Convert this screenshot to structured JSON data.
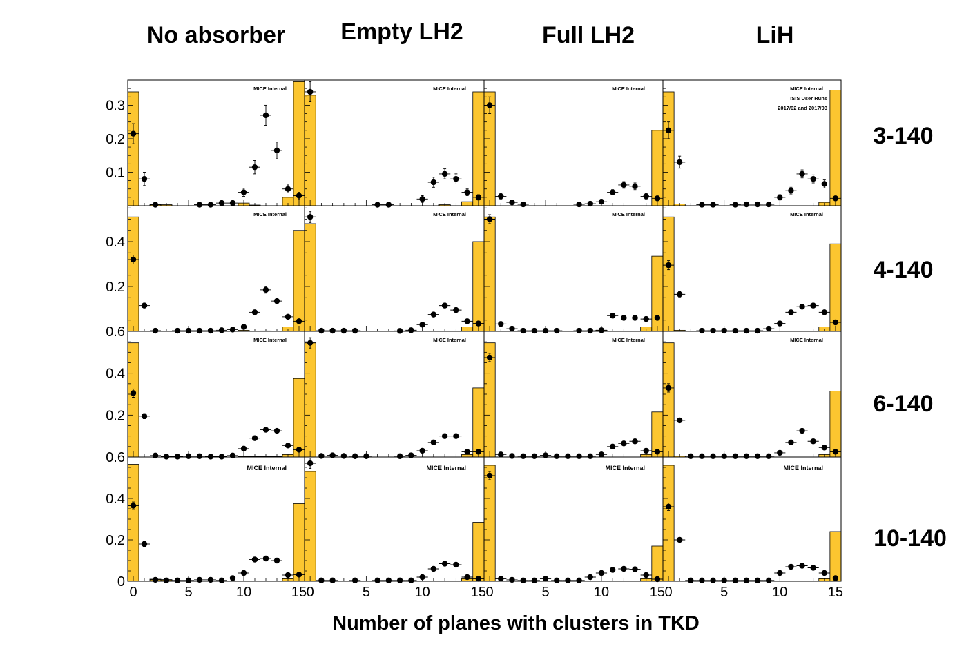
{
  "figure": {
    "xlabel": "Number of planes with clusters in TKD",
    "columns": [
      "No absorber",
      "Empty LH2",
      "Full LH2",
      "LiH"
    ],
    "rows": [
      "3-140",
      "4-140",
      "6-140",
      "10-140"
    ],
    "x_ticks": [
      "0",
      "5",
      "10",
      "15"
    ],
    "watermark": "MICE Internal",
    "extra_labels": [
      "ISIS User Runs",
      "2017/02 and 2017/03"
    ],
    "colors": {
      "histogram_fill": "#fcc630",
      "histogram_edge": "#000000",
      "marker": "#000000"
    }
  },
  "chart_data": {
    "type": "bar",
    "description_series": [
      "Simulation (filled histogram)",
      "Data (points with error bars)"
    ],
    "x": [
      0,
      1,
      2,
      3,
      4,
      5,
      6,
      7,
      8,
      9,
      10,
      11,
      12,
      13,
      14,
      15
    ],
    "xlim": [
      -0.5,
      15.5
    ],
    "panels": [
      {
        "row": "3-140",
        "col": "No absorber",
        "ylim": [
          0,
          0.375
        ],
        "y_ticks": [
          0.1,
          0.2,
          0.3
        ],
        "hist": [
          0.34,
          0,
          0.003,
          0.003,
          0,
          0,
          0,
          0,
          0,
          0,
          0.008,
          0.002,
          0,
          0,
          0.025,
          0.37
        ],
        "points": [
          0.215,
          0.08,
          0.003,
          0,
          0,
          0,
          0.003,
          0.003,
          0.008,
          0.008,
          0.04,
          0.115,
          0.27,
          0.165,
          0.05,
          0.03
        ],
        "errors": [
          0.03,
          0.02,
          0.003,
          0,
          0,
          0,
          0.003,
          0.003,
          0.004,
          0.004,
          0.012,
          0.02,
          0.03,
          0.025,
          0.012,
          0.01
        ]
      },
      {
        "row": "3-140",
        "col": "Empty LH2",
        "ylim": [
          0,
          0.375
        ],
        "hist": [
          0.33,
          0,
          0,
          0,
          0,
          0,
          0,
          0,
          0,
          0,
          0,
          0,
          0.003,
          0,
          0.012,
          0.34
        ],
        "points": [
          0.34,
          0,
          0,
          0,
          0,
          0,
          0.003,
          0.003,
          0,
          0,
          0.02,
          0.07,
          0.095,
          0.08,
          0.04,
          0.025
        ],
        "errors": [
          0.03,
          0,
          0,
          0,
          0,
          0,
          0.003,
          0.003,
          0,
          0,
          0.01,
          0.015,
          0.015,
          0.015,
          0.01,
          0.008
        ]
      },
      {
        "row": "3-140",
        "col": "Full LH2",
        "ylim": [
          0,
          0.375
        ],
        "hist": [
          0.34,
          0,
          0,
          0,
          0,
          0,
          0,
          0,
          0,
          0,
          0,
          0,
          0,
          0,
          0,
          0.225
        ],
        "points": [
          0.3,
          0.028,
          0.01,
          0.004,
          0,
          0,
          0,
          0,
          0.004,
          0.006,
          0.012,
          0.04,
          0.062,
          0.058,
          0.028,
          0.022
        ],
        "errors": [
          0.025,
          0.008,
          0.005,
          0.003,
          0,
          0,
          0,
          0,
          0.003,
          0.004,
          0.006,
          0.008,
          0.01,
          0.01,
          0.008,
          0.007
        ]
      },
      {
        "row": "3-140",
        "col": "LiH",
        "ylim": [
          0,
          0.375
        ],
        "hist": [
          0.34,
          0.005,
          0,
          0,
          0,
          0,
          0,
          0,
          0,
          0,
          0,
          0,
          0,
          0,
          0.01,
          0.345
        ],
        "points": [
          0.225,
          0.13,
          0,
          0.003,
          0.003,
          0,
          0.003,
          0.004,
          0.004,
          0.004,
          0.025,
          0.045,
          0.095,
          0.08,
          0.065,
          0.022
        ],
        "errors": [
          0.025,
          0.018,
          0,
          0.003,
          0.003,
          0,
          0.003,
          0.003,
          0.003,
          0.003,
          0.008,
          0.01,
          0.012,
          0.012,
          0.012,
          0.007
        ]
      },
      {
        "row": "4-140",
        "col": "No absorber",
        "ylim": [
          0,
          0.56
        ],
        "y_ticks": [
          0.2,
          0.4
        ],
        "hist": [
          0.51,
          0,
          0,
          0,
          0,
          0,
          0,
          0,
          0,
          0,
          0.005,
          0,
          0.002,
          0,
          0.02,
          0.45
        ],
        "points": [
          0.32,
          0.115,
          0.003,
          0,
          0.003,
          0.003,
          0.003,
          0.003,
          0.005,
          0.008,
          0.02,
          0.085,
          0.185,
          0.135,
          0.065,
          0.045
        ],
        "errors": [
          0.02,
          0.01,
          0.002,
          0,
          0.002,
          0.002,
          0.002,
          0.002,
          0.003,
          0.003,
          0.005,
          0.01,
          0.015,
          0.012,
          0.008,
          0.006
        ]
      },
      {
        "row": "4-140",
        "col": "Empty LH2",
        "ylim": [
          0,
          0.56
        ],
        "hist": [
          0.48,
          0,
          0,
          0,
          0,
          0,
          0,
          0,
          0,
          0,
          0,
          0,
          0,
          0,
          0.02,
          0.4
        ],
        "points": [
          0.51,
          0.003,
          0.003,
          0.003,
          0.003,
          0,
          0,
          0,
          0.002,
          0.005,
          0.03,
          0.075,
          0.115,
          0.095,
          0.045,
          0.035
        ],
        "errors": [
          0.025,
          0.002,
          0.002,
          0.002,
          0.002,
          0,
          0,
          0,
          0.002,
          0.003,
          0.005,
          0.008,
          0.01,
          0.01,
          0.007,
          0.006
        ]
      },
      {
        "row": "4-140",
        "col": "Full LH2",
        "ylim": [
          0,
          0.56
        ],
        "hist": [
          0.51,
          0,
          0,
          0,
          0,
          0,
          0,
          0,
          0,
          0,
          0.005,
          0,
          0,
          0,
          0.02,
          0.335
        ],
        "points": [
          0.5,
          0.033,
          0.012,
          0.003,
          0.003,
          0.003,
          0.003,
          0,
          0.003,
          0.003,
          0.005,
          0.07,
          0.06,
          0.06,
          0.055,
          0.06
        ],
        "errors": [
          0.02,
          0.006,
          0.004,
          0.002,
          0.002,
          0.002,
          0.002,
          0,
          0.002,
          0.002,
          0.003,
          0.008,
          0.008,
          0.008,
          0.008,
          0.008
        ]
      },
      {
        "row": "4-140",
        "col": "LiH",
        "ylim": [
          0,
          0.56
        ],
        "hist": [
          0.51,
          0.005,
          0,
          0,
          0,
          0,
          0,
          0,
          0,
          0,
          0,
          0,
          0,
          0,
          0.02,
          0.39
        ],
        "points": [
          0.295,
          0.165,
          0,
          0.003,
          0.003,
          0.003,
          0.003,
          0.003,
          0.003,
          0.012,
          0.035,
          0.085,
          0.11,
          0.115,
          0.085,
          0.04
        ],
        "errors": [
          0.02,
          0.012,
          0,
          0.002,
          0.002,
          0.002,
          0.002,
          0.002,
          0.002,
          0.003,
          0.005,
          0.008,
          0.01,
          0.01,
          0.008,
          0.006
        ]
      },
      {
        "row": "6-140",
        "col": "No absorber",
        "ylim": [
          0,
          0.6
        ],
        "y_ticks": [
          0.2,
          0.4,
          0.6
        ],
        "hist": [
          0.545,
          0,
          0,
          0,
          0,
          0,
          0,
          0,
          0,
          0,
          0.003,
          0.002,
          0.002,
          0.002,
          0.012,
          0.375
        ],
        "points": [
          0.305,
          0.195,
          0.007,
          0.002,
          0.002,
          0.004,
          0.004,
          0.002,
          0.002,
          0.007,
          0.04,
          0.09,
          0.13,
          0.125,
          0.055,
          0.035
        ],
        "errors": [
          0.02,
          0.012,
          0.003,
          0.002,
          0.002,
          0.002,
          0.002,
          0.002,
          0.002,
          0.003,
          0.006,
          0.008,
          0.01,
          0.01,
          0.007,
          0.006
        ]
      },
      {
        "row": "6-140",
        "col": "Empty LH2",
        "ylim": [
          0,
          0.6
        ],
        "hist": [
          0.545,
          0,
          0,
          0,
          0,
          0,
          0,
          0,
          0,
          0,
          0,
          0,
          0,
          0,
          0.012,
          0.33
        ],
        "points": [
          0.545,
          0.005,
          0.008,
          0.005,
          0.004,
          0.004,
          0,
          0,
          0.004,
          0.008,
          0.03,
          0.07,
          0.1,
          0.1,
          0.025,
          0.025
        ],
        "errors": [
          0.025,
          0.003,
          0.003,
          0.003,
          0.002,
          0.002,
          0,
          0,
          0.002,
          0.003,
          0.005,
          0.008,
          0.01,
          0.01,
          0.005,
          0.005
        ]
      },
      {
        "row": "6-140",
        "col": "Full LH2",
        "ylim": [
          0,
          0.6
        ],
        "hist": [
          0.545,
          0,
          0,
          0,
          0,
          0,
          0,
          0,
          0,
          0,
          0,
          0,
          0,
          0,
          0.012,
          0.215
        ],
        "points": [
          0.475,
          0.012,
          0.005,
          0.004,
          0.004,
          0.008,
          0.004,
          0.004,
          0.004,
          0.004,
          0.012,
          0.05,
          0.065,
          0.075,
          0.03,
          0.025
        ],
        "errors": [
          0.02,
          0.004,
          0.003,
          0.002,
          0.002,
          0.003,
          0.002,
          0.002,
          0.002,
          0.002,
          0.004,
          0.007,
          0.008,
          0.008,
          0.005,
          0.005
        ]
      },
      {
        "row": "6-140",
        "col": "LiH",
        "ylim": [
          0,
          0.6
        ],
        "hist": [
          0.545,
          0.005,
          0,
          0,
          0,
          0,
          0,
          0,
          0,
          0,
          0,
          0,
          0,
          0,
          0.012,
          0.315
        ],
        "points": [
          0.33,
          0.175,
          0.004,
          0.004,
          0.004,
          0.004,
          0.004,
          0.004,
          0.004,
          0.004,
          0.02,
          0.07,
          0.125,
          0.075,
          0.045,
          0.025
        ],
        "errors": [
          0.02,
          0.01,
          0.002,
          0.002,
          0.002,
          0.002,
          0.002,
          0.002,
          0.002,
          0.002,
          0.004,
          0.007,
          0.01,
          0.008,
          0.006,
          0.005
        ]
      },
      {
        "row": "10-140",
        "col": "No absorber",
        "ylim": [
          0,
          0.6
        ],
        "y_ticks": [
          0,
          0.2,
          0.4,
          0.6
        ],
        "hist": [
          0.565,
          0,
          0.01,
          0.008,
          0.003,
          0,
          0,
          0,
          0,
          0,
          0,
          0,
          0,
          0,
          0.012,
          0.375
        ],
        "points": [
          0.365,
          0.18,
          0.007,
          0.004,
          0.004,
          0.004,
          0.007,
          0.007,
          0.004,
          0.015,
          0.04,
          0.105,
          0.11,
          0.1,
          0.03,
          0.032
        ],
        "errors": [
          0.018,
          0.012,
          0.003,
          0.002,
          0.002,
          0.002,
          0.003,
          0.003,
          0.002,
          0.004,
          0.006,
          0.008,
          0.009,
          0.008,
          0.005,
          0.005
        ]
      },
      {
        "row": "10-140",
        "col": "Empty LH2",
        "ylim": [
          0,
          0.6
        ],
        "hist": [
          0.53,
          0,
          0,
          0,
          0,
          0,
          0,
          0,
          0,
          0,
          0,
          0,
          0,
          0,
          0.012,
          0.285
        ],
        "points": [
          0.57,
          0.004,
          0.004,
          0,
          0.004,
          0,
          0.004,
          0.004,
          0.004,
          0.004,
          0.02,
          0.06,
          0.085,
          0.08,
          0.02,
          0.012
        ],
        "errors": [
          0.025,
          0.002,
          0.002,
          0,
          0.002,
          0,
          0.002,
          0.002,
          0.002,
          0.002,
          0.004,
          0.007,
          0.008,
          0.008,
          0.004,
          0.004
        ]
      },
      {
        "row": "10-140",
        "col": "Full LH2",
        "ylim": [
          0,
          0.6
        ],
        "hist": [
          0.56,
          0,
          0,
          0,
          0,
          0,
          0,
          0,
          0,
          0,
          0,
          0,
          0,
          0,
          0.012,
          0.17
        ],
        "points": [
          0.51,
          0.012,
          0.007,
          0.004,
          0.004,
          0.012,
          0.004,
          0.004,
          0.004,
          0.02,
          0.04,
          0.055,
          0.06,
          0.058,
          0.03,
          0.01
        ],
        "errors": [
          0.02,
          0.004,
          0.003,
          0.002,
          0.002,
          0.004,
          0.002,
          0.002,
          0.002,
          0.004,
          0.006,
          0.007,
          0.007,
          0.007,
          0.005,
          0.003
        ]
      },
      {
        "row": "10-140",
        "col": "LiH",
        "ylim": [
          0,
          0.6
        ],
        "hist": [
          0.56,
          0,
          0,
          0,
          0,
          0,
          0,
          0,
          0,
          0,
          0,
          0,
          0,
          0,
          0.012,
          0.24
        ],
        "points": [
          0.36,
          0.2,
          0.004,
          0.004,
          0.004,
          0.004,
          0.004,
          0.004,
          0.004,
          0.004,
          0.04,
          0.07,
          0.075,
          0.065,
          0.04,
          0.015
        ],
        "errors": [
          0.018,
          0.01,
          0.002,
          0.002,
          0.002,
          0.002,
          0.002,
          0.002,
          0.002,
          0.002,
          0.005,
          0.007,
          0.007,
          0.007,
          0.005,
          0.004
        ]
      }
    ]
  }
}
